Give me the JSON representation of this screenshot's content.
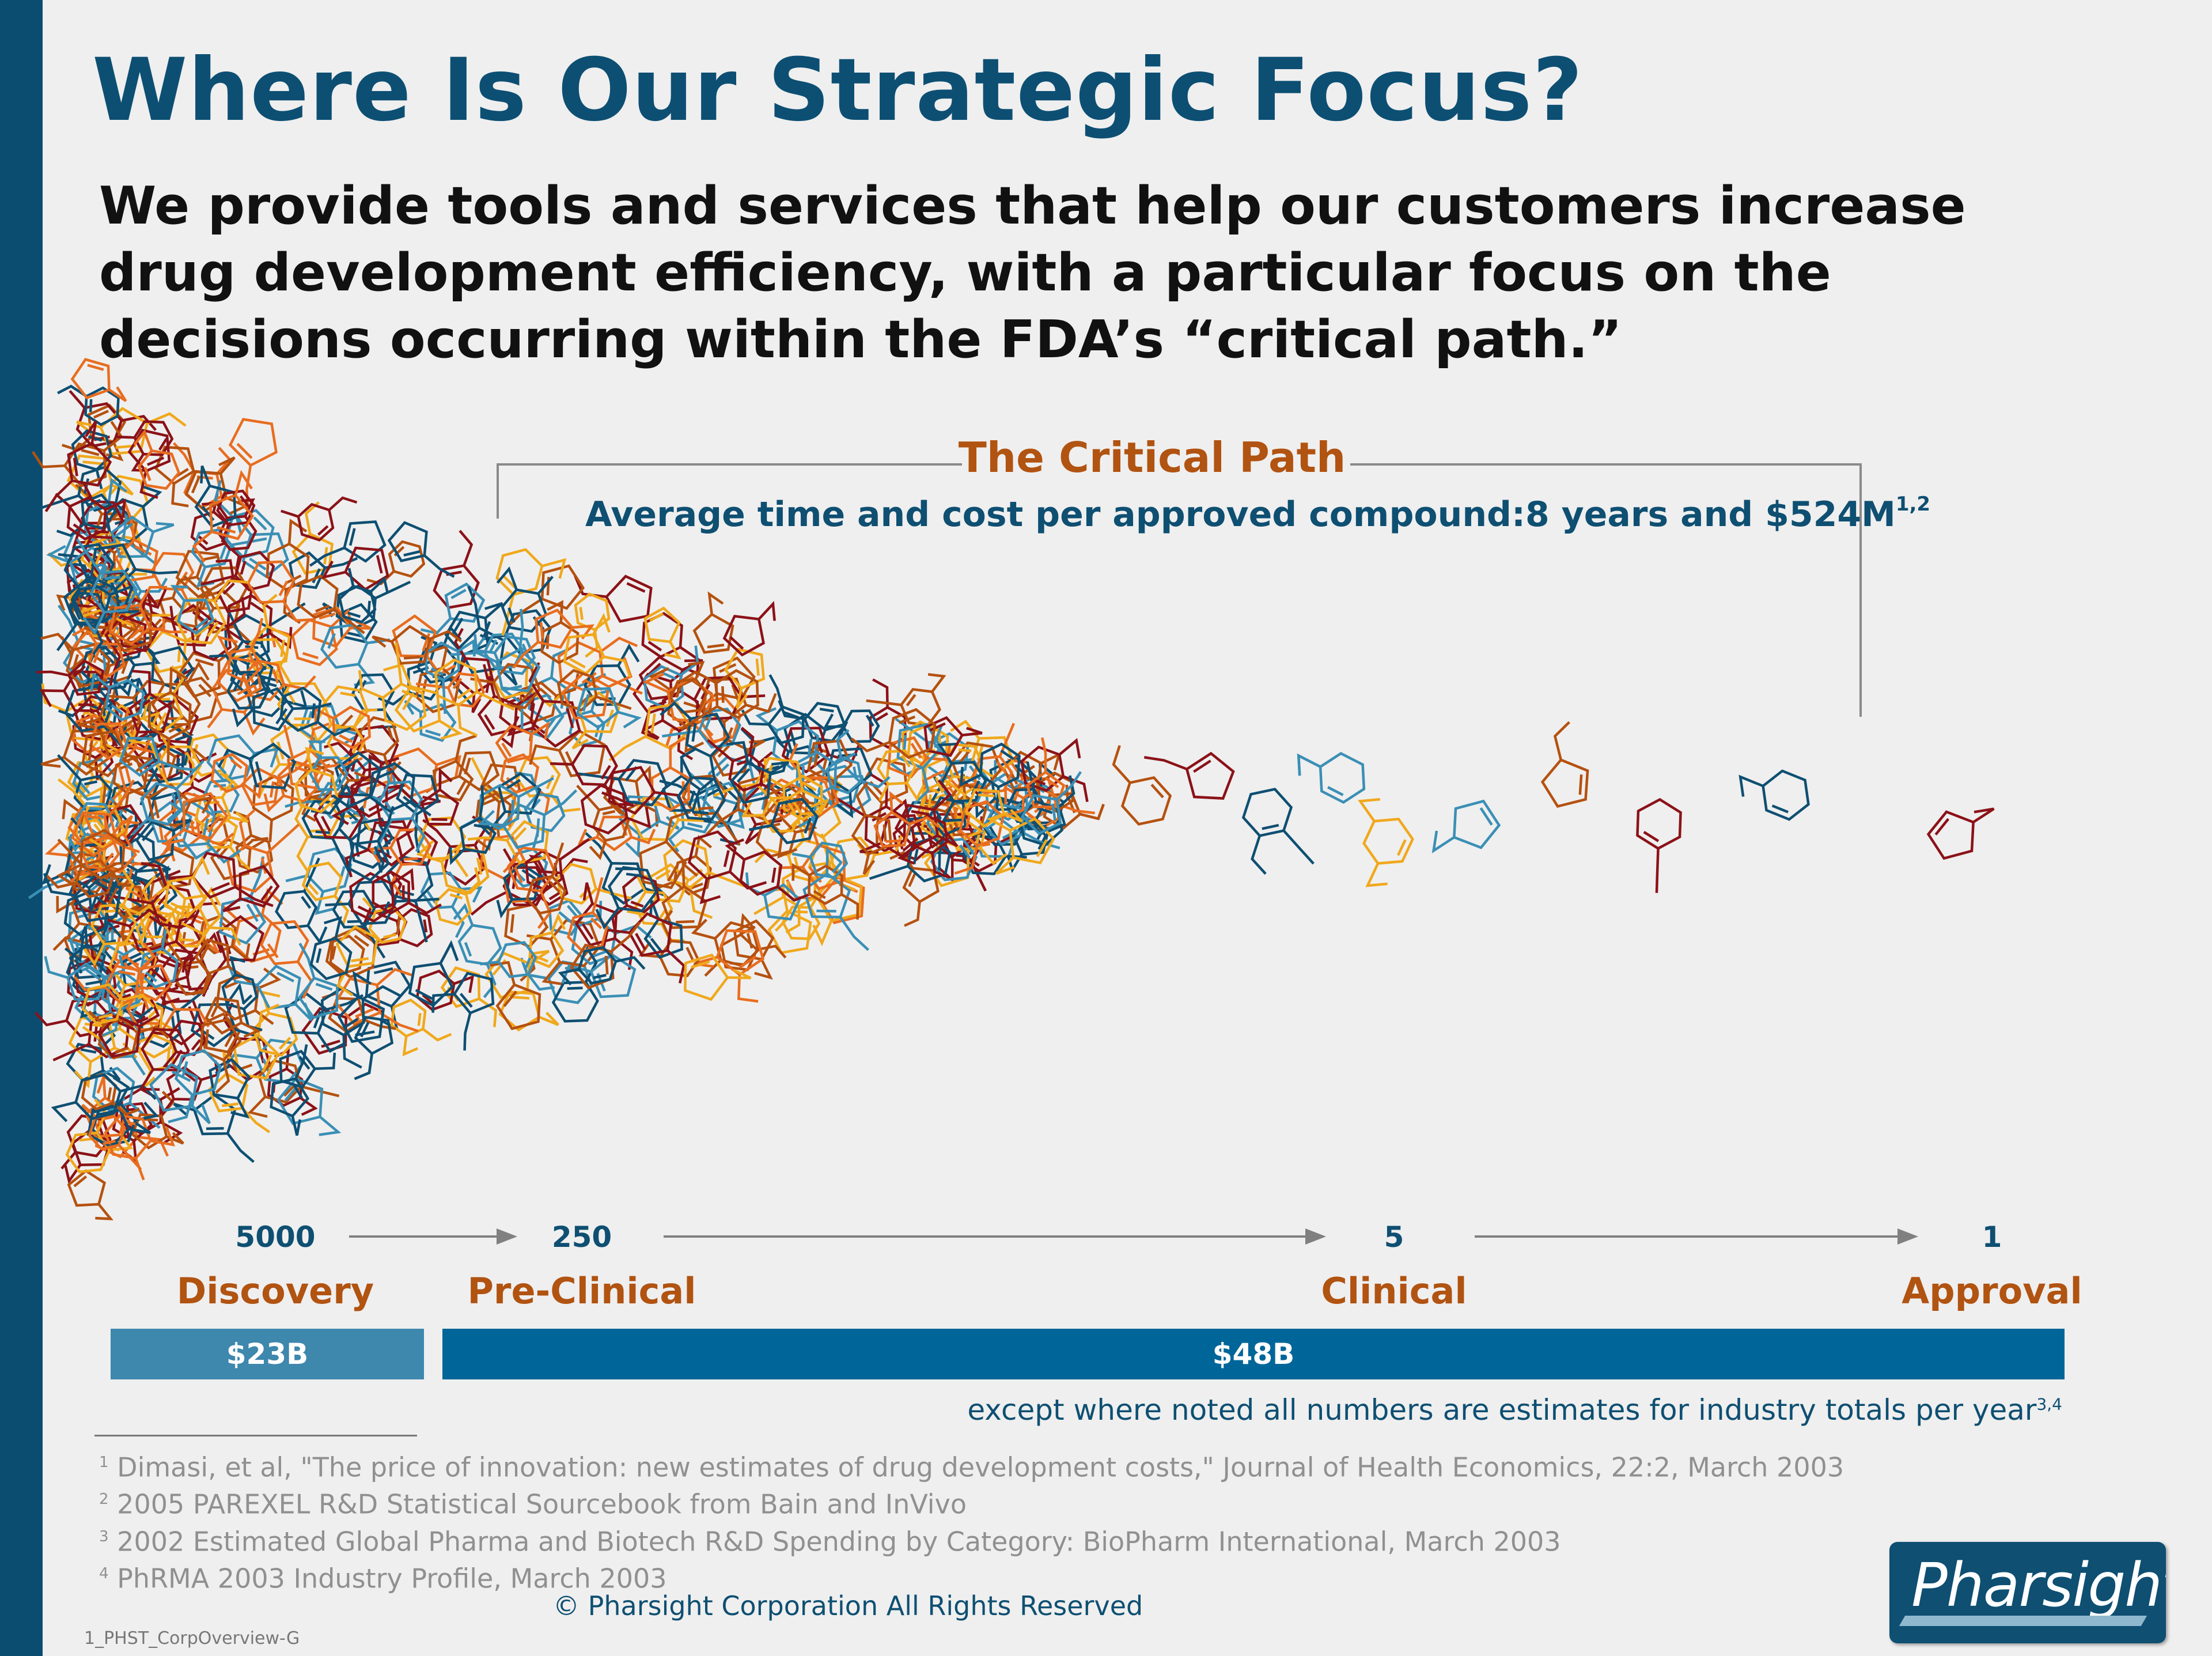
{
  "slide": {
    "title": "Where Is Our Strategic Focus?",
    "intro": "We provide tools and services that help our customers increase drug development efficiency, with a particular focus on the decisions occurring within the FDA’s “critical path.”"
  },
  "critical_path": {
    "title": "The Critical Path",
    "subtitle": "Average time and cost per approved compound:8 years and $524M",
    "subtitle_sup": "1,2"
  },
  "stages": [
    {
      "count": "5000",
      "name": "Discovery"
    },
    {
      "count": "250",
      "name": "Pre-Clinical"
    },
    {
      "count": "5",
      "name": "Clinical"
    },
    {
      "count": "1",
      "name": "Approval"
    }
  ],
  "costs": {
    "discovery": "$23B",
    "development": "$48B"
  },
  "note": {
    "text": "except where noted all numbers are estimates for industry totals per year",
    "sup": "3,4"
  },
  "references": [
    {
      "num": "1",
      "text": "Dimasi, et al, \"The price of innovation: new estimates of drug development costs,\" Journal of Health Economics, 22:2, March 2003"
    },
    {
      "num": "2",
      "text": "2005 PAREXEL R&D Statistical Sourcebook from Bain and InVivo"
    },
    {
      "num": "3",
      "text": "2002 Estimated Global Pharma and Biotech R&D Spending by Category:  BioPharm International, March 2003"
    },
    {
      "num": "4",
      "text": "PhRMA 2003 Industry Profile, March 2003"
    }
  ],
  "footer": {
    "copyright": "© Pharsight Corporation All Rights Reserved",
    "slide_code": "1_PHST_CorpOverview-G",
    "logo_text": "Pharsight"
  },
  "colors": {
    "brand_navy": "#0e4f72",
    "accent_orange": "#b15311",
    "molecule_palette": [
      "#b5510f",
      "#e86d1f",
      "#f0a81c",
      "#0e4f72",
      "#3a8fb5",
      "#8b1218"
    ]
  },
  "icons": {
    "molecule_funnel": "molecule-ring-icon",
    "arrows": "right-arrow-icon"
  }
}
